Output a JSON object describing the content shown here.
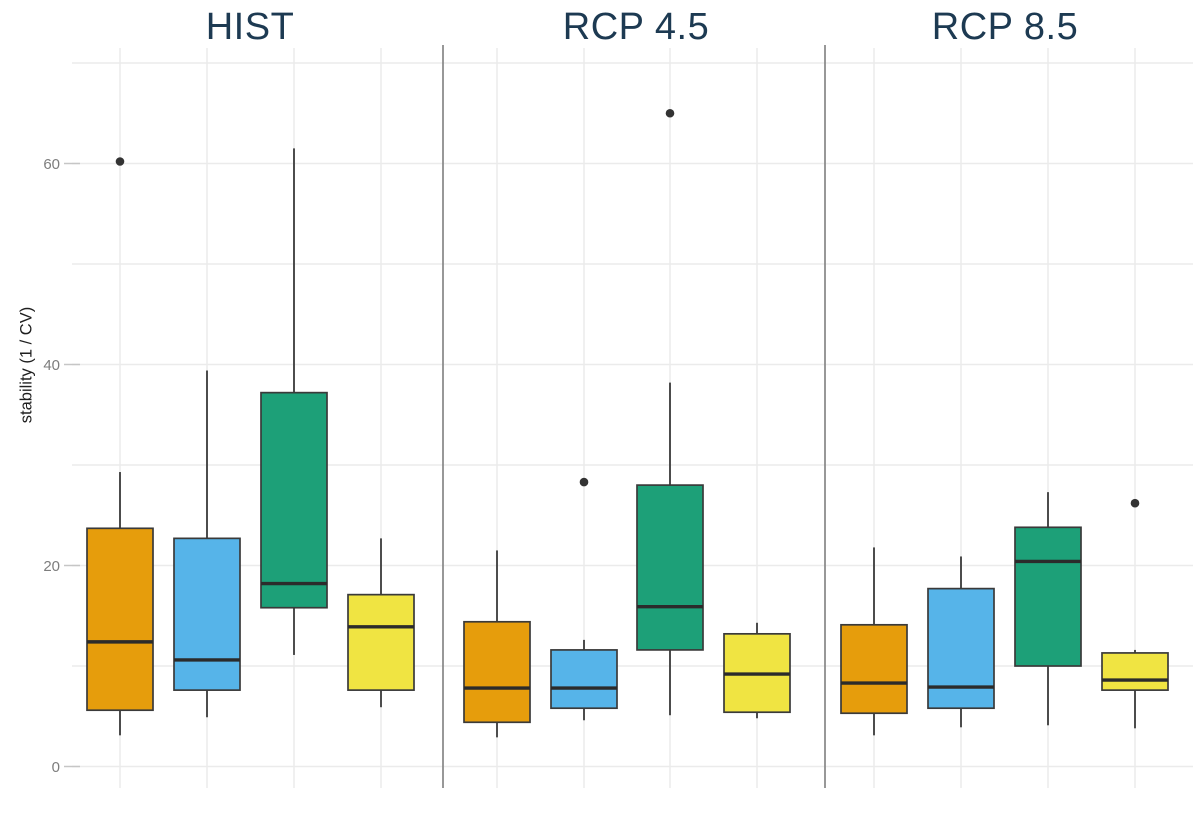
{
  "figure": {
    "background": "#ffffff",
    "panel_titles": [
      "HIST",
      "RCP 4.5",
      "RCP 8.5"
    ],
    "y_axis_label": "stability (1 / CV)",
    "colors": {
      "panel_title": "#1D3A52",
      "axis_title": "#1F1F1F",
      "tick_label": "#7D7D7D",
      "gridline": "#EBEBEB",
      "tick_mark": "#C6C6C6",
      "divider": "#8C8C8C",
      "box_stroke": "#3A3A3A",
      "median_line": "#2B2B2B",
      "outlier_dot": "#333333"
    }
  },
  "chart_data": {
    "type": "boxplot",
    "title": "",
    "xlabel": "",
    "ylabel": "stability (1 / CV)",
    "ylim": [
      -2,
      71
    ],
    "yticks": [
      0,
      20,
      40,
      60
    ],
    "gridline_step": 10,
    "grid": true,
    "legend": "none",
    "group_colors": [
      "#E69D0C",
      "#56B4E9",
      "#1DA078",
      "#F0E442"
    ],
    "groups": [
      "orange",
      "blue",
      "green",
      "yellow"
    ],
    "panels": [
      {
        "title": "HIST",
        "boxes": [
          {
            "group": "orange",
            "whisker_low": 3.1,
            "q1": 5.6,
            "median": 12.4,
            "q3": 23.7,
            "whisker_high": 29.3,
            "outliers": [
              60.2
            ]
          },
          {
            "group": "blue",
            "whisker_low": 4.9,
            "q1": 7.6,
            "median": 10.6,
            "q3": 22.7,
            "whisker_high": 39.4,
            "outliers": []
          },
          {
            "group": "green",
            "whisker_low": 11.1,
            "q1": 15.8,
            "median": 18.2,
            "q3": 37.2,
            "whisker_high": 61.5,
            "outliers": []
          },
          {
            "group": "yellow",
            "whisker_low": 5.9,
            "q1": 7.6,
            "median": 13.9,
            "q3": 17.1,
            "whisker_high": 22.7,
            "outliers": []
          }
        ]
      },
      {
        "title": "RCP 4.5",
        "boxes": [
          {
            "group": "orange",
            "whisker_low": 2.9,
            "q1": 4.4,
            "median": 7.8,
            "q3": 14.4,
            "whisker_high": 21.5,
            "outliers": []
          },
          {
            "group": "blue",
            "whisker_low": 4.6,
            "q1": 5.8,
            "median": 7.8,
            "q3": 11.6,
            "whisker_high": 12.6,
            "outliers": [
              28.3
            ]
          },
          {
            "group": "green",
            "whisker_low": 5.1,
            "q1": 11.6,
            "median": 15.9,
            "q3": 28.0,
            "whisker_high": 38.2,
            "outliers": [
              65.0
            ]
          },
          {
            "group": "yellow",
            "whisker_low": 4.8,
            "q1": 5.4,
            "median": 9.2,
            "q3": 13.2,
            "whisker_high": 14.3,
            "outliers": []
          }
        ]
      },
      {
        "title": "RCP 8.5",
        "boxes": [
          {
            "group": "orange",
            "whisker_low": 3.1,
            "q1": 5.3,
            "median": 8.3,
            "q3": 14.1,
            "whisker_high": 21.8,
            "outliers": []
          },
          {
            "group": "blue",
            "whisker_low": 3.9,
            "q1": 5.8,
            "median": 7.9,
            "q3": 17.7,
            "whisker_high": 20.9,
            "outliers": []
          },
          {
            "group": "green",
            "whisker_low": 4.1,
            "q1": 10.0,
            "median": 20.4,
            "q3": 23.8,
            "whisker_high": 27.3,
            "outliers": []
          },
          {
            "group": "yellow",
            "whisker_low": 3.8,
            "q1": 7.6,
            "median": 8.6,
            "q3": 11.3,
            "whisker_high": 11.6,
            "outliers": [
              26.2
            ]
          }
        ]
      }
    ]
  }
}
